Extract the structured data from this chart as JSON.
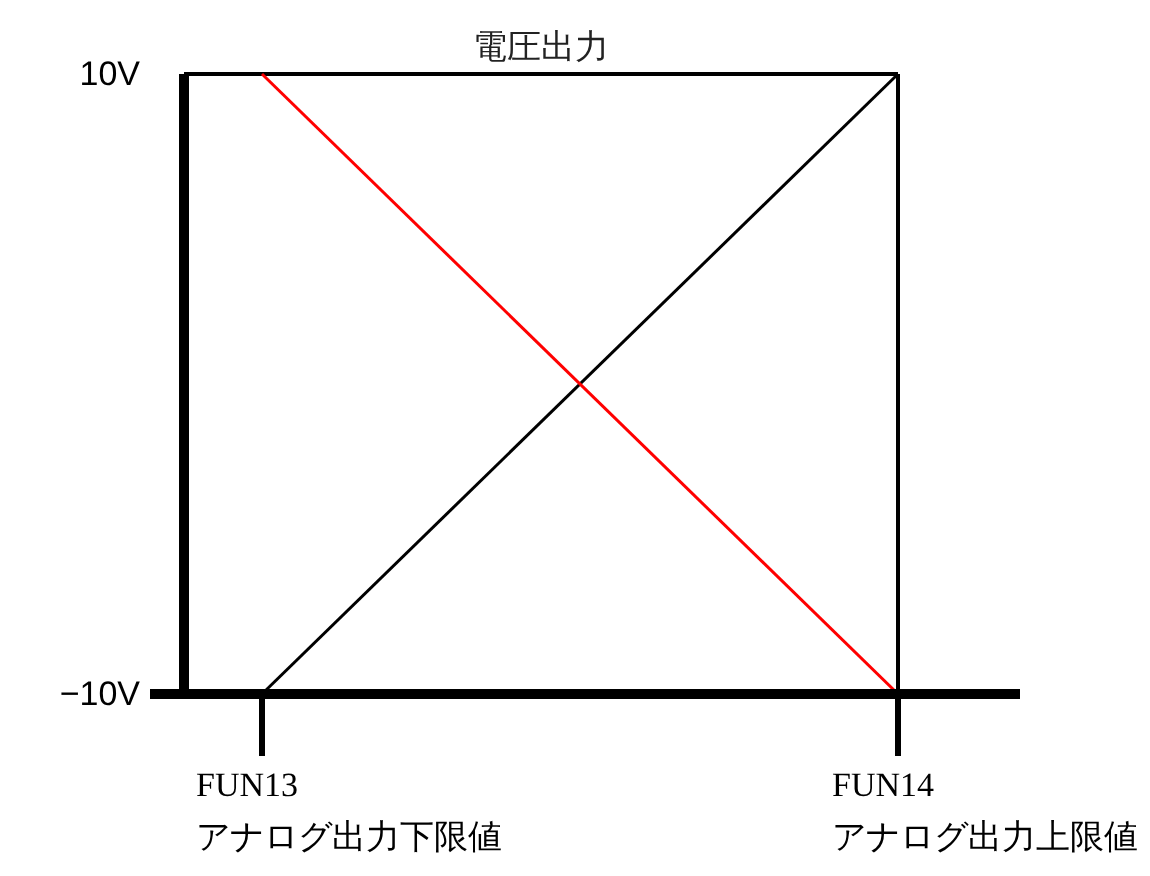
{
  "chart_data": {
    "type": "line",
    "ylabel": "電圧出力",
    "categories": [
      "FUN13\nアナログ出力下限値",
      "FUN14\nアナログ出力上限値"
    ],
    "ylim": [
      -10,
      10
    ],
    "yticks": [
      {
        "value": -10,
        "label": "−10V"
      },
      {
        "value": 10,
        "label": "10V"
      }
    ],
    "ref_lines": [
      {
        "axis": "x",
        "value": "FUN14\nアナログ出力上限値",
        "color": "#000000"
      }
    ],
    "series": [
      {
        "color": "#000000",
        "values": [
          -10,
          10
        ]
      },
      {
        "color": "#ff0000",
        "values": [
          10,
          -10
        ]
      }
    ]
  }
}
